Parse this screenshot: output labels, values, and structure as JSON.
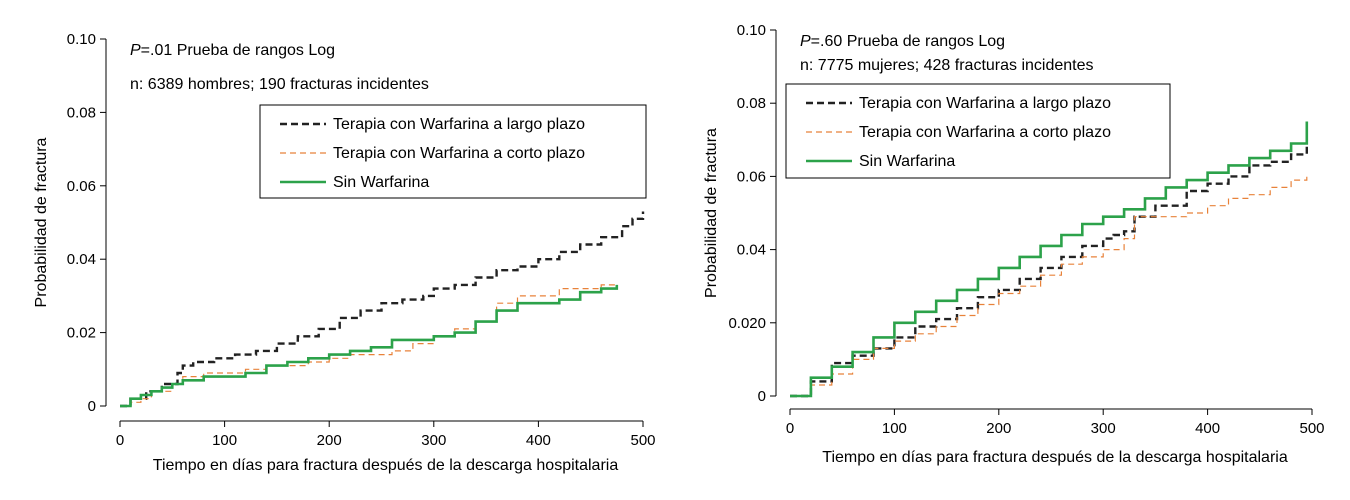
{
  "chart_data": [
    {
      "type": "line",
      "title": "",
      "annotation": {
        "p_label": "P",
        "p_value": "=.01",
        "test": " Prueba de rangos Log",
        "n_text": "n: 6389 hombres; 190 fracturas incidentes"
      },
      "xlabel": "Tiempo en días para fractura después de la descarga hospitalaria",
      "ylabel": "Probabilidad de fractura",
      "xlim": [
        0,
        500
      ],
      "ylim": [
        0,
        0.1
      ],
      "xticks": [
        0,
        100,
        200,
        300,
        400,
        500
      ],
      "xtick_labels": [
        "0",
        "100",
        "200",
        "300",
        "400",
        "500"
      ],
      "yticks": [
        0,
        0.02,
        0.04,
        0.06,
        0.08,
        0.1
      ],
      "ytick_labels": [
        "0",
        "0.02",
        "0.04",
        "0.06",
        "0.08",
        "0.10"
      ],
      "legend_position": "top-right",
      "series": [
        {
          "name": "Terapia con Warfarina a largo plazo",
          "color": "#222222",
          "style": "long-dash",
          "x": [
            0,
            10,
            25,
            40,
            55,
            60,
            70,
            90,
            110,
            130,
            150,
            170,
            190,
            210,
            230,
            250,
            270,
            290,
            300,
            320,
            340,
            360,
            380,
            400,
            420,
            440,
            460,
            480,
            490,
            500
          ],
          "y": [
            0,
            0.002,
            0.004,
            0.006,
            0.009,
            0.011,
            0.012,
            0.013,
            0.014,
            0.015,
            0.017,
            0.019,
            0.021,
            0.024,
            0.026,
            0.028,
            0.029,
            0.03,
            0.032,
            0.033,
            0.035,
            0.037,
            0.038,
            0.04,
            0.042,
            0.044,
            0.046,
            0.049,
            0.051,
            0.053
          ]
        },
        {
          "name": "Terapia con Warfarina a corto plazo",
          "color": "#e8823a",
          "style": "short-dash",
          "x": [
            0,
            10,
            20,
            30,
            50,
            60,
            80,
            100,
            120,
            140,
            160,
            180,
            200,
            220,
            240,
            260,
            280,
            300,
            320,
            340,
            360,
            380,
            400,
            420,
            440,
            460,
            475
          ],
          "y": [
            0,
            0.001,
            0.002,
            0.004,
            0.006,
            0.008,
            0.009,
            0.009,
            0.01,
            0.011,
            0.011,
            0.012,
            0.013,
            0.014,
            0.014,
            0.015,
            0.017,
            0.019,
            0.021,
            0.023,
            0.028,
            0.03,
            0.03,
            0.032,
            0.032,
            0.033,
            0.033
          ]
        },
        {
          "name": "Sin Warfarina",
          "color": "#2ca24a",
          "style": "solid",
          "x": [
            0,
            10,
            20,
            30,
            40,
            50,
            60,
            80,
            100,
            120,
            140,
            160,
            180,
            200,
            220,
            240,
            260,
            280,
            300,
            320,
            340,
            360,
            380,
            400,
            420,
            440,
            460,
            475
          ],
          "y": [
            0,
            0.002,
            0.003,
            0.004,
            0.005,
            0.006,
            0.007,
            0.008,
            0.008,
            0.009,
            0.011,
            0.012,
            0.013,
            0.014,
            0.015,
            0.016,
            0.018,
            0.018,
            0.019,
            0.02,
            0.023,
            0.026,
            0.028,
            0.028,
            0.029,
            0.031,
            0.032,
            0.033
          ]
        }
      ]
    },
    {
      "type": "line",
      "title": "",
      "annotation": {
        "p_label": "P",
        "p_value": "=.60",
        "test": " Prueba de rangos Log",
        "n_text": "n: 7775 mujeres; 428 fracturas incidentes"
      },
      "xlabel": "Tiempo en días para fractura después de la descarga hospitalaria",
      "ylabel": "Probabilidad de fractura",
      "xlim": [
        0,
        500
      ],
      "ylim": [
        0,
        0.1
      ],
      "xticks": [
        0,
        100,
        200,
        300,
        400,
        500
      ],
      "xtick_labels": [
        "0",
        "100",
        "200",
        "300",
        "400",
        "500"
      ],
      "yticks": [
        0,
        0.02,
        0.04,
        0.06,
        0.08,
        0.1
      ],
      "ytick_labels": [
        "0",
        "0.020",
        "0.04",
        "0.06",
        "0.08",
        "0.10"
      ],
      "legend_position": "top-left",
      "series": [
        {
          "name": "Terapia con Warfarina a largo plazo",
          "color": "#222222",
          "style": "long-dash",
          "x": [
            0,
            20,
            40,
            60,
            80,
            100,
            120,
            140,
            160,
            180,
            200,
            220,
            240,
            260,
            280,
            300,
            310,
            320,
            330,
            350,
            380,
            400,
            420,
            440,
            460,
            480,
            495
          ],
          "y": [
            0,
            0.004,
            0.009,
            0.011,
            0.013,
            0.016,
            0.019,
            0.021,
            0.024,
            0.027,
            0.029,
            0.032,
            0.035,
            0.038,
            0.041,
            0.043,
            0.044,
            0.045,
            0.049,
            0.052,
            0.056,
            0.058,
            0.06,
            0.063,
            0.064,
            0.066,
            0.07
          ]
        },
        {
          "name": "Terapia con Warfarina a corto plazo",
          "color": "#e8823a",
          "style": "short-dash",
          "x": [
            0,
            20,
            40,
            60,
            80,
            100,
            120,
            140,
            160,
            180,
            200,
            220,
            240,
            260,
            280,
            300,
            320,
            330,
            360,
            380,
            400,
            420,
            440,
            460,
            480,
            495
          ],
          "y": [
            0,
            0.003,
            0.006,
            0.01,
            0.013,
            0.015,
            0.017,
            0.019,
            0.022,
            0.025,
            0.028,
            0.03,
            0.033,
            0.036,
            0.038,
            0.04,
            0.043,
            0.049,
            0.049,
            0.05,
            0.052,
            0.054,
            0.055,
            0.057,
            0.059,
            0.061
          ]
        },
        {
          "name": "Sin Warfarina",
          "color": "#2ca24a",
          "style": "solid",
          "x": [
            0,
            20,
            40,
            60,
            80,
            100,
            120,
            140,
            160,
            180,
            200,
            220,
            240,
            260,
            280,
            300,
            320,
            340,
            360,
            380,
            400,
            420,
            440,
            460,
            480,
            495
          ],
          "y": [
            0,
            0.005,
            0.008,
            0.012,
            0.016,
            0.02,
            0.023,
            0.026,
            0.029,
            0.032,
            0.035,
            0.038,
            0.041,
            0.044,
            0.047,
            0.049,
            0.051,
            0.054,
            0.057,
            0.059,
            0.061,
            0.063,
            0.065,
            0.067,
            0.069,
            0.075
          ]
        }
      ]
    }
  ]
}
